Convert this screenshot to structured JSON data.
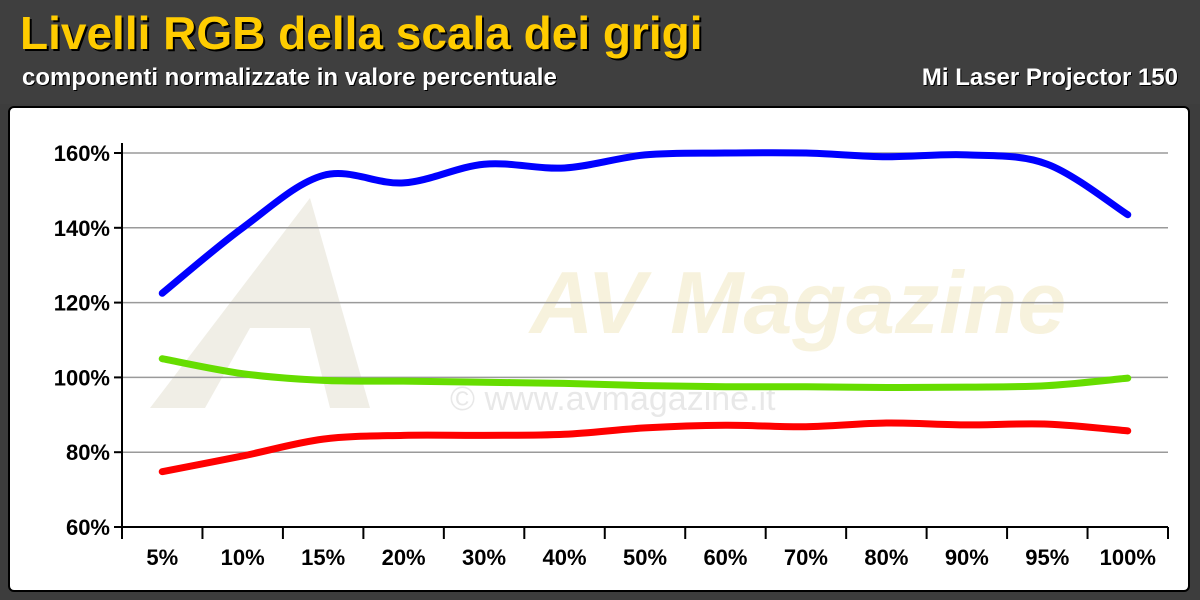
{
  "header": {
    "title": "Livelli RGB della scala dei grigi",
    "subtitle": "componenti normalizzate in valore percentuale",
    "device": "Mi Laser Projector 150"
  },
  "chart_data": {
    "type": "line",
    "categories": [
      "5%",
      "10%",
      "15%",
      "20%",
      "30%",
      "40%",
      "50%",
      "60%",
      "70%",
      "80%",
      "90%",
      "95%",
      "100%"
    ],
    "yticks": [
      "60%",
      "80%",
      "100%",
      "120%",
      "140%",
      "160%"
    ],
    "ylim": [
      60,
      160
    ],
    "grid": true,
    "series": [
      {
        "color": "#0000ff",
        "values": [
          122.5,
          140,
          154,
          152,
          157,
          156,
          159.5,
          160,
          160,
          159,
          159.5,
          157,
          143.5
        ]
      },
      {
        "color": "#66dd00",
        "values": [
          105,
          101,
          99.2,
          99,
          98.7,
          98.4,
          97.8,
          97.5,
          97.5,
          97.3,
          97.4,
          97.8,
          99.8
        ]
      },
      {
        "color": "#ff0000",
        "values": [
          74.8,
          79,
          83.5,
          84.5,
          84.5,
          84.8,
          86.5,
          87.2,
          86.8,
          87.8,
          87.3,
          87.5,
          85.7
        ]
      }
    ]
  },
  "watermark": {
    "text": "© www.avmagazine.it",
    "logo": "AV Magazine"
  }
}
